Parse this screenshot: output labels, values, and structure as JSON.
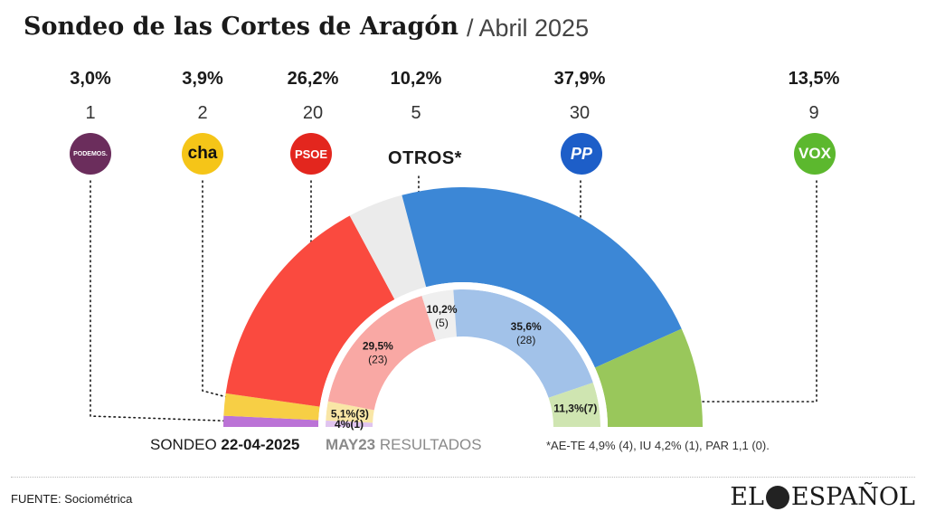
{
  "header": {
    "title": "Sondeo de las Cortes de Aragón",
    "subtitle": "/ Abril 2025"
  },
  "parties": [
    {
      "id": "podemos",
      "pct": "3,0%",
      "seats": "1",
      "logo_text": "PODEMOS.",
      "color": "#6b2d5c"
    },
    {
      "id": "cha",
      "pct": "3,9%",
      "seats": "2",
      "logo_text": "cha",
      "color": "#f5c518"
    },
    {
      "id": "psoe",
      "pct": "26,2%",
      "seats": "20",
      "logo_text": "PSOE",
      "color": "#e3261e"
    },
    {
      "id": "otros",
      "pct": "10,2%",
      "seats": "5",
      "logo_text": "OTROS*",
      "color": "#e6e6e6"
    },
    {
      "id": "pp",
      "pct": "37,9%",
      "seats": "30",
      "logo_text": "PP",
      "color": "#1d5ec8"
    },
    {
      "id": "vox",
      "pct": "13,5%",
      "seats": "9",
      "logo_text": "VOX",
      "color": "#5cb82e"
    }
  ],
  "chart_data": [
    {
      "type": "pie",
      "title": "SONDEO 22-04-2025",
      "categories": [
        "Podemos",
        "CHA",
        "PSOE",
        "Otros",
        "PP",
        "Vox"
      ],
      "values": [
        3.0,
        3.9,
        26.2,
        10.2,
        37.9,
        13.5
      ],
      "seats": [
        1,
        2,
        20,
        5,
        30,
        9
      ],
      "colors": [
        "#bb73d6",
        "#f7cf45",
        "#fa4a3f",
        "#ebebeb",
        "#3c87d6",
        "#99c75b"
      ]
    },
    {
      "type": "pie",
      "title": "MAY23 RESULTADOS",
      "categories": [
        "Podemos",
        "CHA",
        "PSOE",
        "Otros",
        "PP",
        "Vox"
      ],
      "values": [
        4,
        5.1,
        29.5,
        10.2,
        35.6,
        11.3
      ],
      "seats": [
        1,
        3,
        23,
        5,
        28,
        7
      ],
      "colors": [
        "#e0c4ef",
        "#f9e6a6",
        "#f9a8a4",
        "#efefef",
        "#a2c2e9",
        "#cfe5b1"
      ],
      "labels": [
        "4%",
        "5,1%",
        "29,5%",
        "10,2%",
        "35,6%",
        "11,3%"
      ],
      "seat_labels": [
        "(1)",
        "(3)",
        "(23)",
        "(5)",
        "(28)",
        "(7)"
      ]
    }
  ],
  "footer": {
    "sondeo_label": "SONDEO",
    "sondeo_date": "22-04-2025",
    "may23_label": "MAY23",
    "resultados_label": "RESULTADOS",
    "note": "*AE-TE 4,9% (4), IU 4,2% (1), PAR 1,1 (0).",
    "source": "FUENTE: Sociométrica",
    "brand_left": "EL",
    "brand_right": "ESPAÑOL"
  }
}
